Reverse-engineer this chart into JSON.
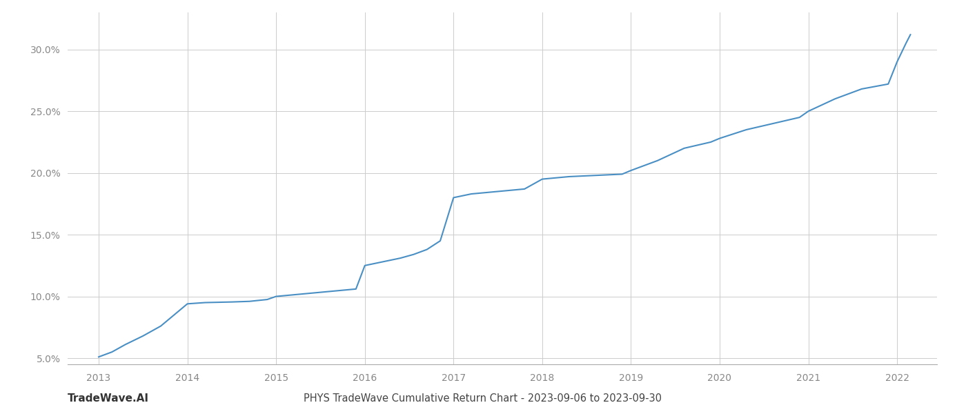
{
  "title": "PHYS TradeWave Cumulative Return Chart - 2023-09-06 to 2023-09-30",
  "watermark": "TradeWave.AI",
  "line_color": "#4a8fc4",
  "background_color": "#ffffff",
  "grid_color": "#cccccc",
  "x_years": [
    2013,
    2014,
    2015,
    2016,
    2017,
    2018,
    2019,
    2020,
    2021,
    2022
  ],
  "x_data": [
    2013.0,
    2013.15,
    2013.3,
    2013.5,
    2013.7,
    2013.85,
    2014.0,
    2014.2,
    2014.5,
    2014.7,
    2014.9,
    2015.0,
    2015.3,
    2015.6,
    2015.9,
    2016.0,
    2016.2,
    2016.4,
    2016.55,
    2016.7,
    2016.85,
    2017.0,
    2017.2,
    2017.5,
    2017.8,
    2018.0,
    2018.3,
    2018.6,
    2018.9,
    2019.0,
    2019.3,
    2019.6,
    2019.9,
    2020.0,
    2020.3,
    2020.6,
    2020.9,
    2021.0,
    2021.3,
    2021.6,
    2021.9,
    2022.0,
    2022.1,
    2022.15
  ],
  "y_data": [
    5.1,
    5.5,
    6.1,
    6.8,
    7.6,
    8.5,
    9.4,
    9.5,
    9.55,
    9.6,
    9.75,
    10.0,
    10.2,
    10.4,
    10.6,
    12.5,
    12.8,
    13.1,
    13.4,
    13.8,
    14.5,
    18.0,
    18.3,
    18.5,
    18.7,
    19.5,
    19.7,
    19.8,
    19.9,
    20.2,
    21.0,
    22.0,
    22.5,
    22.8,
    23.5,
    24.0,
    24.5,
    25.0,
    26.0,
    26.8,
    27.2,
    29.0,
    30.5,
    31.2
  ],
  "ylim": [
    4.5,
    33.0
  ],
  "yticks": [
    5.0,
    10.0,
    15.0,
    20.0,
    25.0,
    30.0
  ],
  "ylabel_fontsize": 10,
  "xlabel_fontsize": 10,
  "title_fontsize": 10.5,
  "watermark_fontsize": 11,
  "line_width": 1.5,
  "bottom_spine_color": "#aaaaaa",
  "tick_color": "#aaaaaa",
  "label_color": "#888888"
}
